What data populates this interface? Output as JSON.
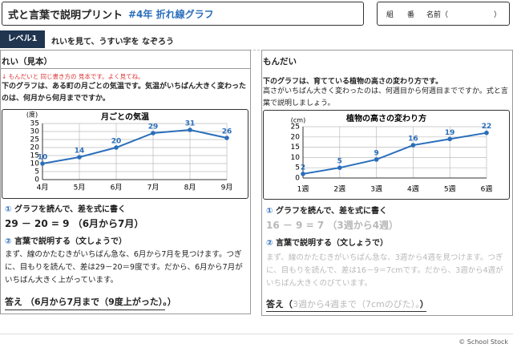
{
  "header": {
    "title": "式と言葉で説明プリント",
    "subtitle": "#4年 折れ線グラフ",
    "class": "組",
    "number": "番",
    "name": "名前（",
    "name_close": "）"
  },
  "level": {
    "badge": "レベル1",
    "instruction": "れいを見て、うすい字を なぞろう"
  },
  "example": {
    "heading": "れい（見本）",
    "note": "↓ もんだいと 同じ書き方の 見本です。よく見てね。",
    "question": "下のグラフは、ある町の月ごとの気温です。気温がいちばん大きく変わったのは、何月から何月までですか。",
    "step1": {
      "num": "①",
      "label": "グラフを読んで、差を式に書く"
    },
    "formula": "29 － 20 = 9 （6月から7月）",
    "step2": {
      "num": "②",
      "label": "言葉で説明する（文しょうで）"
    },
    "explanation": "まず、線のかたむきがいちばん急な、6月から7月を見つけます。つぎに、目もりを読んで、差は29－20＝9度です。だから、6月から7月がいちばん大きく上がっています。",
    "answer_label": "答え",
    "answer": "（6月から7月まで（9度上がった）。）"
  },
  "problem": {
    "heading": "もんだい",
    "question1": "下のグラフは、育てている植物の高さの変わり方です。",
    "question2": "高さがいちばん大きく変わったのは、何週目から何週目までですか。式と言葉で説明しましょう。",
    "step1": {
      "num": "①",
      "label": "グラフを読んで、差を式に書く"
    },
    "formula": "16 － 9 = 7 （3週から4週）",
    "step2": {
      "num": "②",
      "label": "言葉で説明する（文しょうで）"
    },
    "explanation": "まず、線のかたむきがいちばん急な、3週から4週を見つけます。つぎに、目もりを読んで、差は16－9＝7cmです。だから、3週から4週がいちばん大きくのびています。",
    "answer_label": "答え（",
    "answer": "3週から4週まで（7cmのびた）。",
    "answer_close": "）"
  },
  "footer": "© School Stock",
  "chart_data": [
    {
      "type": "line",
      "title": "月ごとの気温",
      "y_label": "(度)",
      "categories": [
        "4月",
        "5月",
        "6月",
        "7月",
        "8月",
        "9月"
      ],
      "values": [
        10,
        14,
        20,
        29,
        31,
        26
      ],
      "color": "#2a6ebb",
      "ylim": [
        0,
        35
      ],
      "yticks": [
        0,
        5,
        10,
        15,
        20,
        25,
        30,
        35
      ],
      "grid": true
    },
    {
      "type": "line",
      "title": "植物の高さの変わり方",
      "y_label": "(cm)",
      "categories": [
        "1週",
        "2週",
        "3週",
        "4週",
        "5週",
        "6週"
      ],
      "values": [
        2,
        5,
        9,
        16,
        19,
        22
      ],
      "color": "#2a6ebb",
      "ylim": [
        0,
        25
      ],
      "yticks": [
        0,
        5,
        10,
        15,
        20,
        25
      ],
      "grid": true
    }
  ]
}
